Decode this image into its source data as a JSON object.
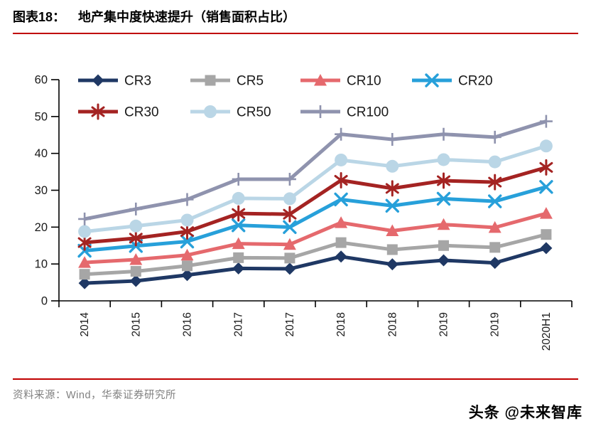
{
  "header": {
    "label": "图表18：",
    "title": "地产集中度快速提升（销售面积占比）"
  },
  "footer": {
    "source": "资料来源：Wind，华泰证券研究所"
  },
  "watermark": {
    "text": "头条 @未来智库"
  },
  "colors": {
    "rule": "#c00000",
    "source_text": "#808080",
    "axis": "#000000",
    "tick_text": "#1a1a1a"
  },
  "chart_data": {
    "type": "line",
    "title": "地产集中度快速提升（销售面积占比）",
    "categories": [
      "2014",
      "2015",
      "2016",
      "2017",
      "2017",
      "2018",
      "2018",
      "2019",
      "2019",
      "2020H1"
    ],
    "yticks": [
      0,
      10,
      20,
      30,
      40,
      50,
      60
    ],
    "ylim": [
      0,
      60
    ],
    "xlabel": "",
    "ylabel": "",
    "grid": false,
    "legend_position": "top-inside",
    "legend_rows": [
      [
        "CR3",
        "CR5",
        "CR10",
        "CR20"
      ],
      [
        "CR30",
        "CR50",
        "CR100"
      ]
    ],
    "series": [
      {
        "name": "CR3",
        "color": "#1f3864",
        "marker": "diamond",
        "values": [
          4.8,
          5.4,
          7.0,
          8.8,
          8.7,
          12.0,
          9.9,
          11.0,
          10.3,
          14.3
        ]
      },
      {
        "name": "CR5",
        "color": "#a6a6a6",
        "marker": "square",
        "values": [
          7.2,
          8.0,
          9.5,
          11.7,
          11.6,
          15.8,
          13.9,
          15.0,
          14.5,
          18.0
        ]
      },
      {
        "name": "CR10",
        "color": "#e5696d",
        "marker": "triangle",
        "values": [
          10.4,
          11.2,
          12.4,
          15.5,
          15.3,
          21.2,
          19.0,
          20.7,
          19.9,
          23.7
        ]
      },
      {
        "name": "CR20",
        "color": "#27a0da",
        "marker": "x",
        "values": [
          13.6,
          14.9,
          16.1,
          20.5,
          20.0,
          27.5,
          25.8,
          27.7,
          27.0,
          30.9
        ]
      },
      {
        "name": "CR30",
        "color": "#a42322",
        "marker": "asterisk",
        "values": [
          15.8,
          17.0,
          18.8,
          23.7,
          23.5,
          32.7,
          30.5,
          32.6,
          32.2,
          36.2
        ]
      },
      {
        "name": "CR50",
        "color": "#bad6e6",
        "marker": "circle",
        "values": [
          18.8,
          20.3,
          21.9,
          27.8,
          27.7,
          38.2,
          36.5,
          38.3,
          37.7,
          42.0
        ]
      },
      {
        "name": "CR100",
        "color": "#8f93ae",
        "marker": "plus",
        "values": [
          22.2,
          24.9,
          27.5,
          33.0,
          33.0,
          45.2,
          43.8,
          45.2,
          44.4,
          48.7
        ]
      }
    ]
  }
}
